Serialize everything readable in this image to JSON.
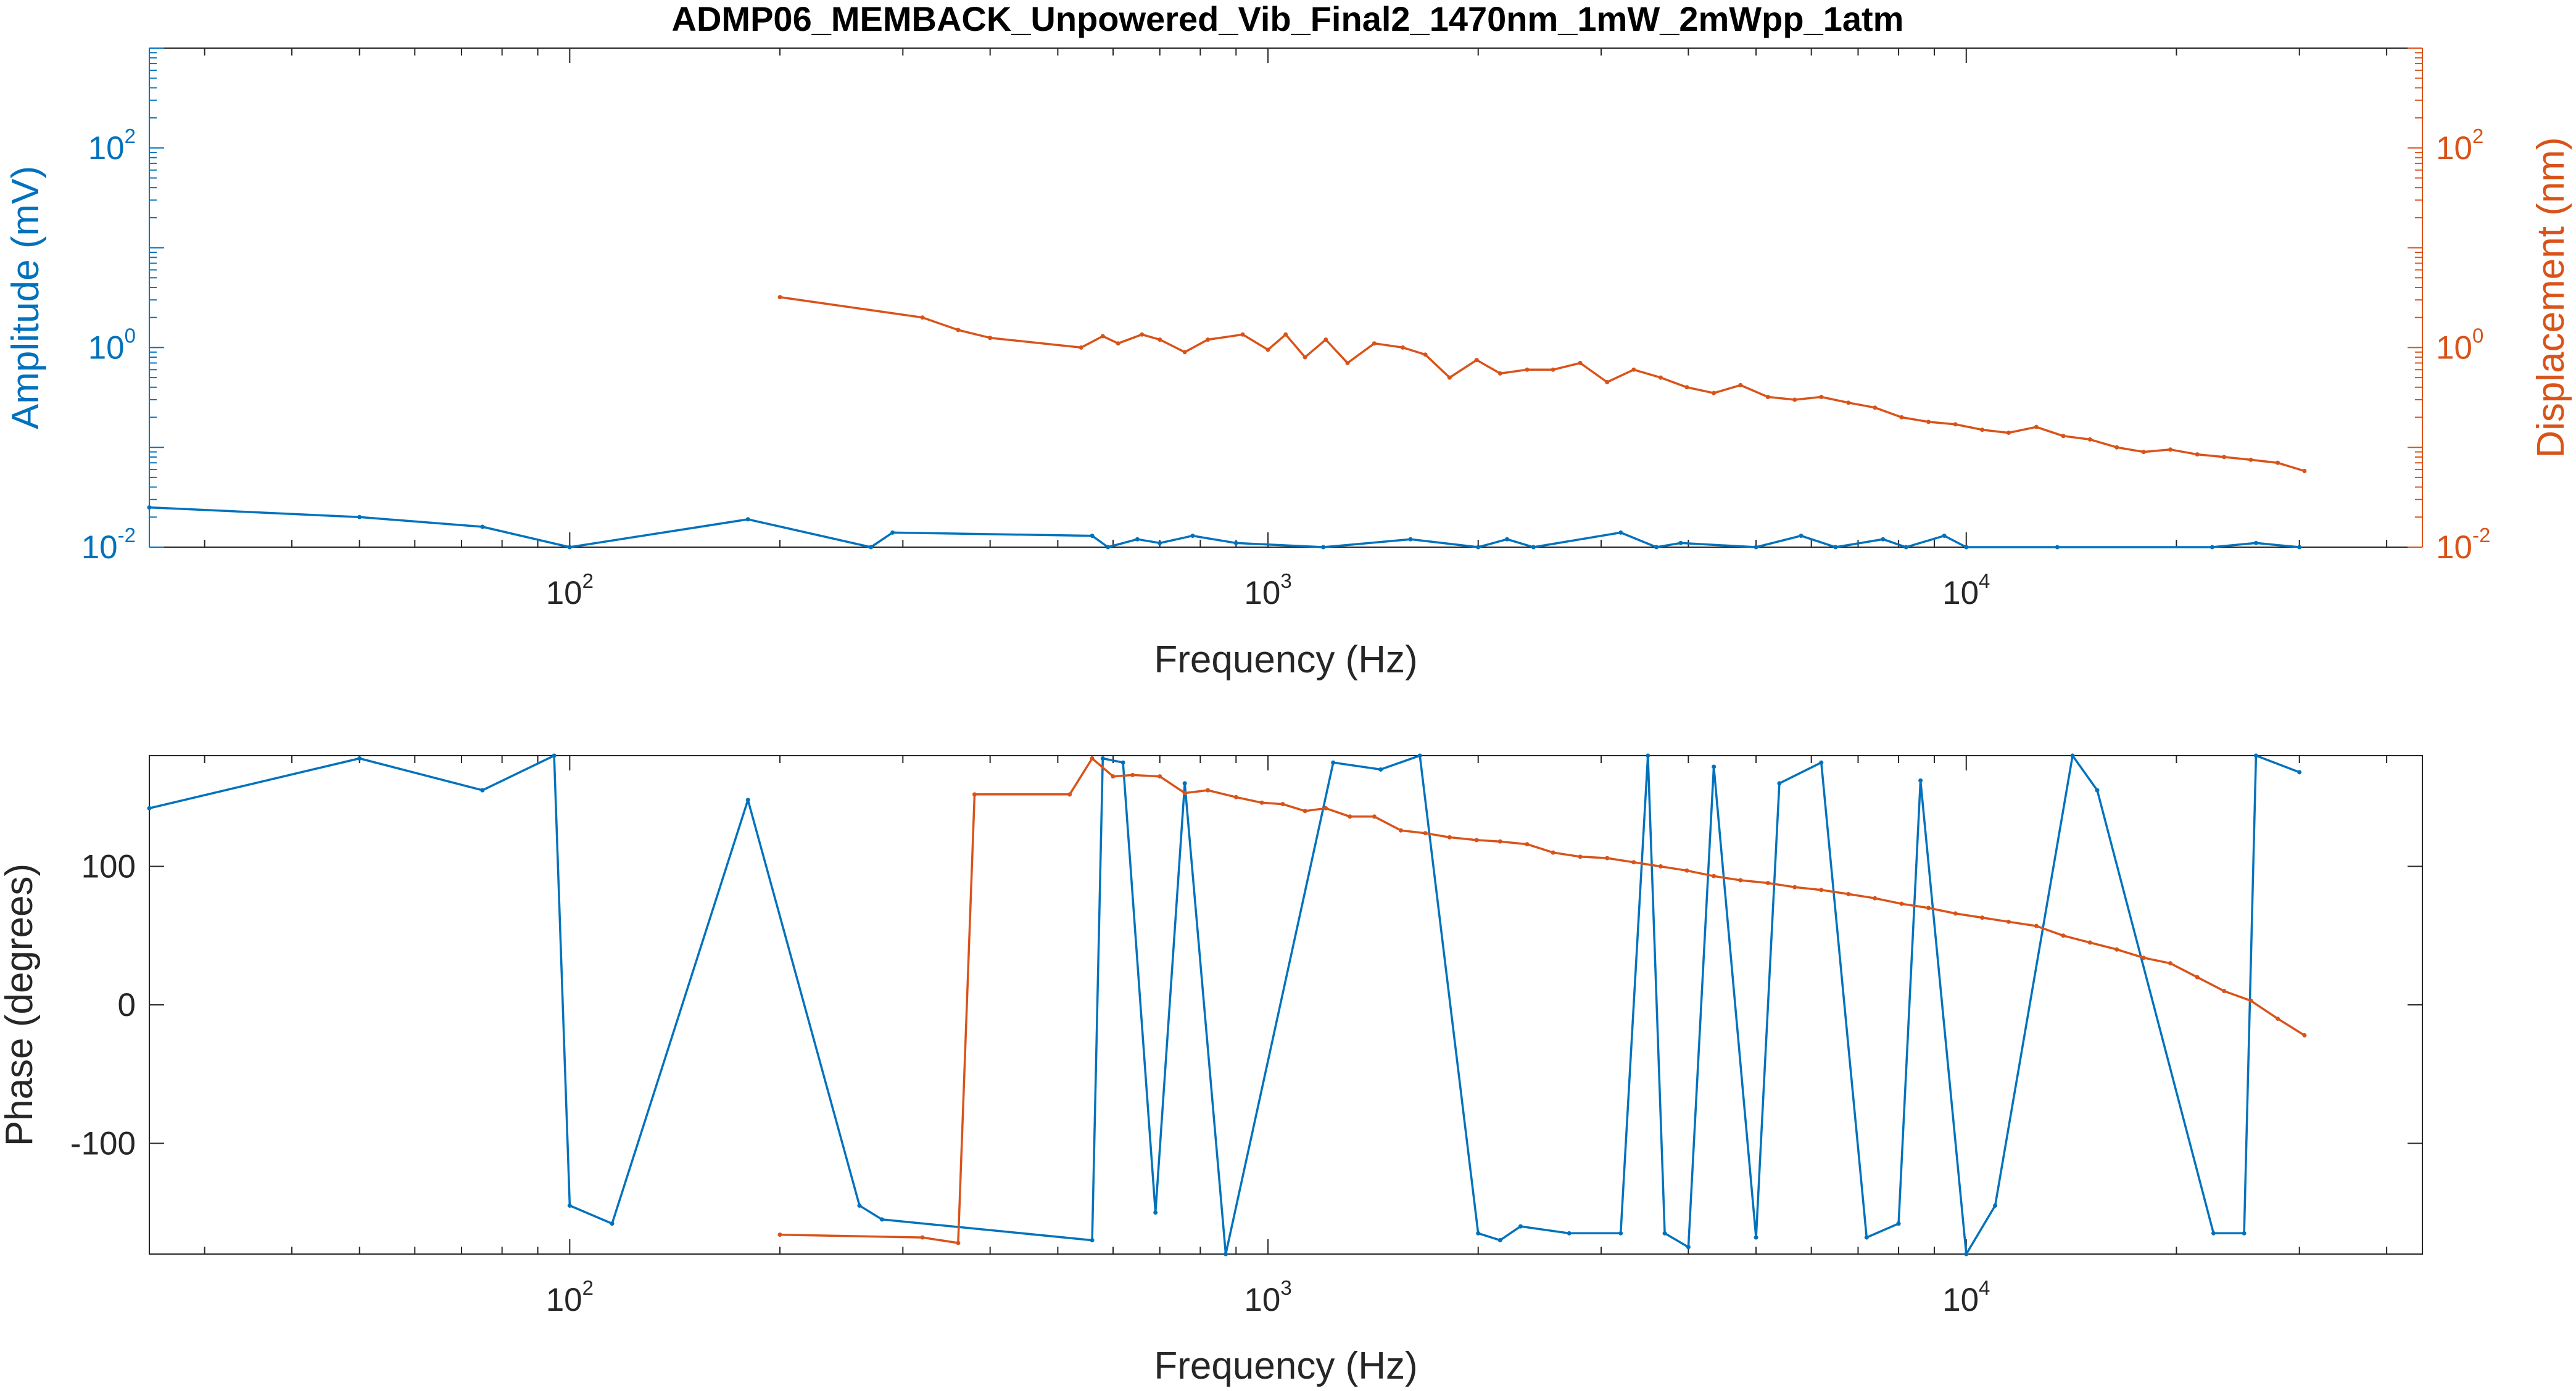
{
  "colors": {
    "blue": "#0072BD",
    "orange": "#D95319",
    "axis": "#262626",
    "grid": "#ffffff"
  },
  "chart_data": [
    {
      "type": "line",
      "title": "ADMP06_MEMBACK_Unpowered_Vib_Final2_1470nm_1mW_2mWpp_1atm",
      "xlabel": "Frequency (Hz)",
      "ylabel": "Amplitude (mV)",
      "ylabel_right": "Displacement (nm)",
      "xscale": "log",
      "yscale": "log",
      "xlim": [
        25,
        45000
      ],
      "ylim": [
        0.01,
        1000
      ],
      "ylim_right": [
        0.01,
        1000
      ],
      "xticks": [
        {
          "base": "10",
          "exp": "2",
          "value": 100
        },
        {
          "base": "10",
          "exp": "3",
          "value": 1000
        },
        {
          "base": "10",
          "exp": "4",
          "value": 10000
        }
      ],
      "yticks_left": [
        {
          "base": "10",
          "exp": "-2",
          "value": 0.01
        },
        {
          "base": "10",
          "exp": "0",
          "value": 1
        },
        {
          "base": "10",
          "exp": "2",
          "value": 100
        }
      ],
      "yticks_right": [
        {
          "base": "10",
          "exp": "-2",
          "value": 0.01
        },
        {
          "base": "10",
          "exp": "0",
          "value": 1
        },
        {
          "base": "10",
          "exp": "2",
          "value": 100
        }
      ],
      "series": [
        {
          "axis": "left",
          "color": "#0072BD",
          "x": [
            25,
            50,
            75,
            100,
            180,
            270,
            290,
            560,
            590,
            650,
            700,
            780,
            900,
            1200,
            1600,
            2000,
            2200,
            2400,
            3200,
            3600,
            3900,
            5000,
            5800,
            6500,
            7600,
            8200,
            9300,
            10000,
            13500,
            22500,
            26000,
            30000
          ],
          "y": [
            0.025,
            0.02,
            0.016,
            0.01,
            0.019,
            0.01,
            0.014,
            0.013,
            0.01,
            0.012,
            0.011,
            0.013,
            0.011,
            0.01,
            0.012,
            0.01,
            0.012,
            0.01,
            0.014,
            0.01,
            0.011,
            0.01,
            0.013,
            0.01,
            0.012,
            0.01,
            0.013,
            0.01,
            0.01,
            0.01,
            0.011,
            0.01
          ]
        },
        {
          "axis": "right",
          "color": "#D95319",
          "x": [
            200,
            320,
            360,
            400,
            540,
            580,
            610,
            660,
            700,
            760,
            820,
            920,
            1000,
            1060,
            1130,
            1210,
            1300,
            1420,
            1560,
            1680,
            1820,
            1990,
            2150,
            2350,
            2560,
            2800,
            3060,
            3340,
            3650,
            3980,
            4350,
            4750,
            5200,
            5680,
            6200,
            6780,
            7400,
            8080,
            8830,
            9650,
            10540,
            11500,
            12600,
            13770,
            15040,
            16430,
            17950,
            19600,
            21420,
            23400,
            25560,
            27930,
            30500
          ],
          "y": [
            3.2,
            2.0,
            1.5,
            1.25,
            1.0,
            1.3,
            1.1,
            1.35,
            1.2,
            0.9,
            1.2,
            1.35,
            0.95,
            1.35,
            0.8,
            1.2,
            0.7,
            1.1,
            1.0,
            0.85,
            0.5,
            0.75,
            0.55,
            0.6,
            0.6,
            0.7,
            0.45,
            0.6,
            0.5,
            0.4,
            0.35,
            0.42,
            0.32,
            0.3,
            0.32,
            0.28,
            0.25,
            0.2,
            0.18,
            0.17,
            0.15,
            0.14,
            0.16,
            0.13,
            0.12,
            0.1,
            0.09,
            0.095,
            0.085,
            0.08,
            0.075,
            0.07,
            0.058
          ]
        }
      ]
    },
    {
      "type": "line",
      "title": "",
      "xlabel": "Frequency (Hz)",
      "ylabel": "Phase (degrees)",
      "xscale": "log",
      "yscale": "linear",
      "xlim": [
        25,
        45000
      ],
      "ylim": [
        -180,
        180
      ],
      "xticks": [
        {
          "base": "10",
          "exp": "2",
          "value": 100
        },
        {
          "base": "10",
          "exp": "3",
          "value": 1000
        },
        {
          "base": "10",
          "exp": "4",
          "value": 10000
        }
      ],
      "yticks": [
        {
          "label": "100",
          "value": 100
        },
        {
          "label": "0",
          "value": 0
        },
        {
          "label": "-100",
          "value": -100
        }
      ],
      "series": [
        {
          "color": "#0072BD",
          "x": [
            25,
            50,
            75,
            95,
            100,
            115,
            180,
            260,
            280,
            560,
            580,
            620,
            690,
            760,
            870,
            1240,
            1450,
            1650,
            2000,
            2150,
            2300,
            2700,
            3200,
            3500,
            3700,
            4000,
            4350,
            5000,
            5400,
            6200,
            7200,
            8000,
            8600,
            10000,
            11000,
            14200,
            15400,
            22600,
            25000,
            26000,
            30000
          ],
          "y": [
            142,
            178,
            155,
            180,
            -145,
            -158,
            148,
            -145,
            -155,
            -170,
            178,
            175,
            -150,
            160,
            -180,
            175,
            170,
            180,
            -165,
            -170,
            -160,
            -165,
            -165,
            180,
            -165,
            -175,
            172,
            -168,
            160,
            175,
            -168,
            -158,
            162,
            -180,
            -145,
            180,
            155,
            -165,
            -165,
            180,
            168
          ]
        },
        {
          "color": "#D95319",
          "x": [
            200,
            320,
            360,
            380,
            520,
            560,
            600,
            640,
            700,
            760,
            820,
            900,
            980,
            1050,
            1130,
            1210,
            1310,
            1420,
            1550,
            1680,
            1820,
            1990,
            2150,
            2350,
            2560,
            2800,
            3060,
            3340,
            3650,
            3980,
            4350,
            4750,
            5200,
            5680,
            6200,
            6780,
            7400,
            8080,
            8830,
            9650,
            10540,
            11500,
            12600,
            13770,
            15040,
            16430,
            17950,
            19600,
            21420,
            23400,
            25560,
            27930,
            30500
          ],
          "y": [
            -166,
            -168,
            -172,
            152,
            152,
            178,
            165,
            166,
            165,
            153,
            155,
            150,
            146,
            145,
            140,
            142,
            136,
            136,
            126,
            124,
            121,
            119,
            118,
            116,
            110,
            107,
            106,
            103,
            100,
            97,
            93,
            90,
            88,
            85,
            83,
            80,
            77,
            73,
            70,
            66,
            63,
            60,
            57,
            50,
            45,
            40,
            34,
            30,
            20,
            10,
            3,
            -10,
            -22
          ]
        }
      ]
    }
  ]
}
